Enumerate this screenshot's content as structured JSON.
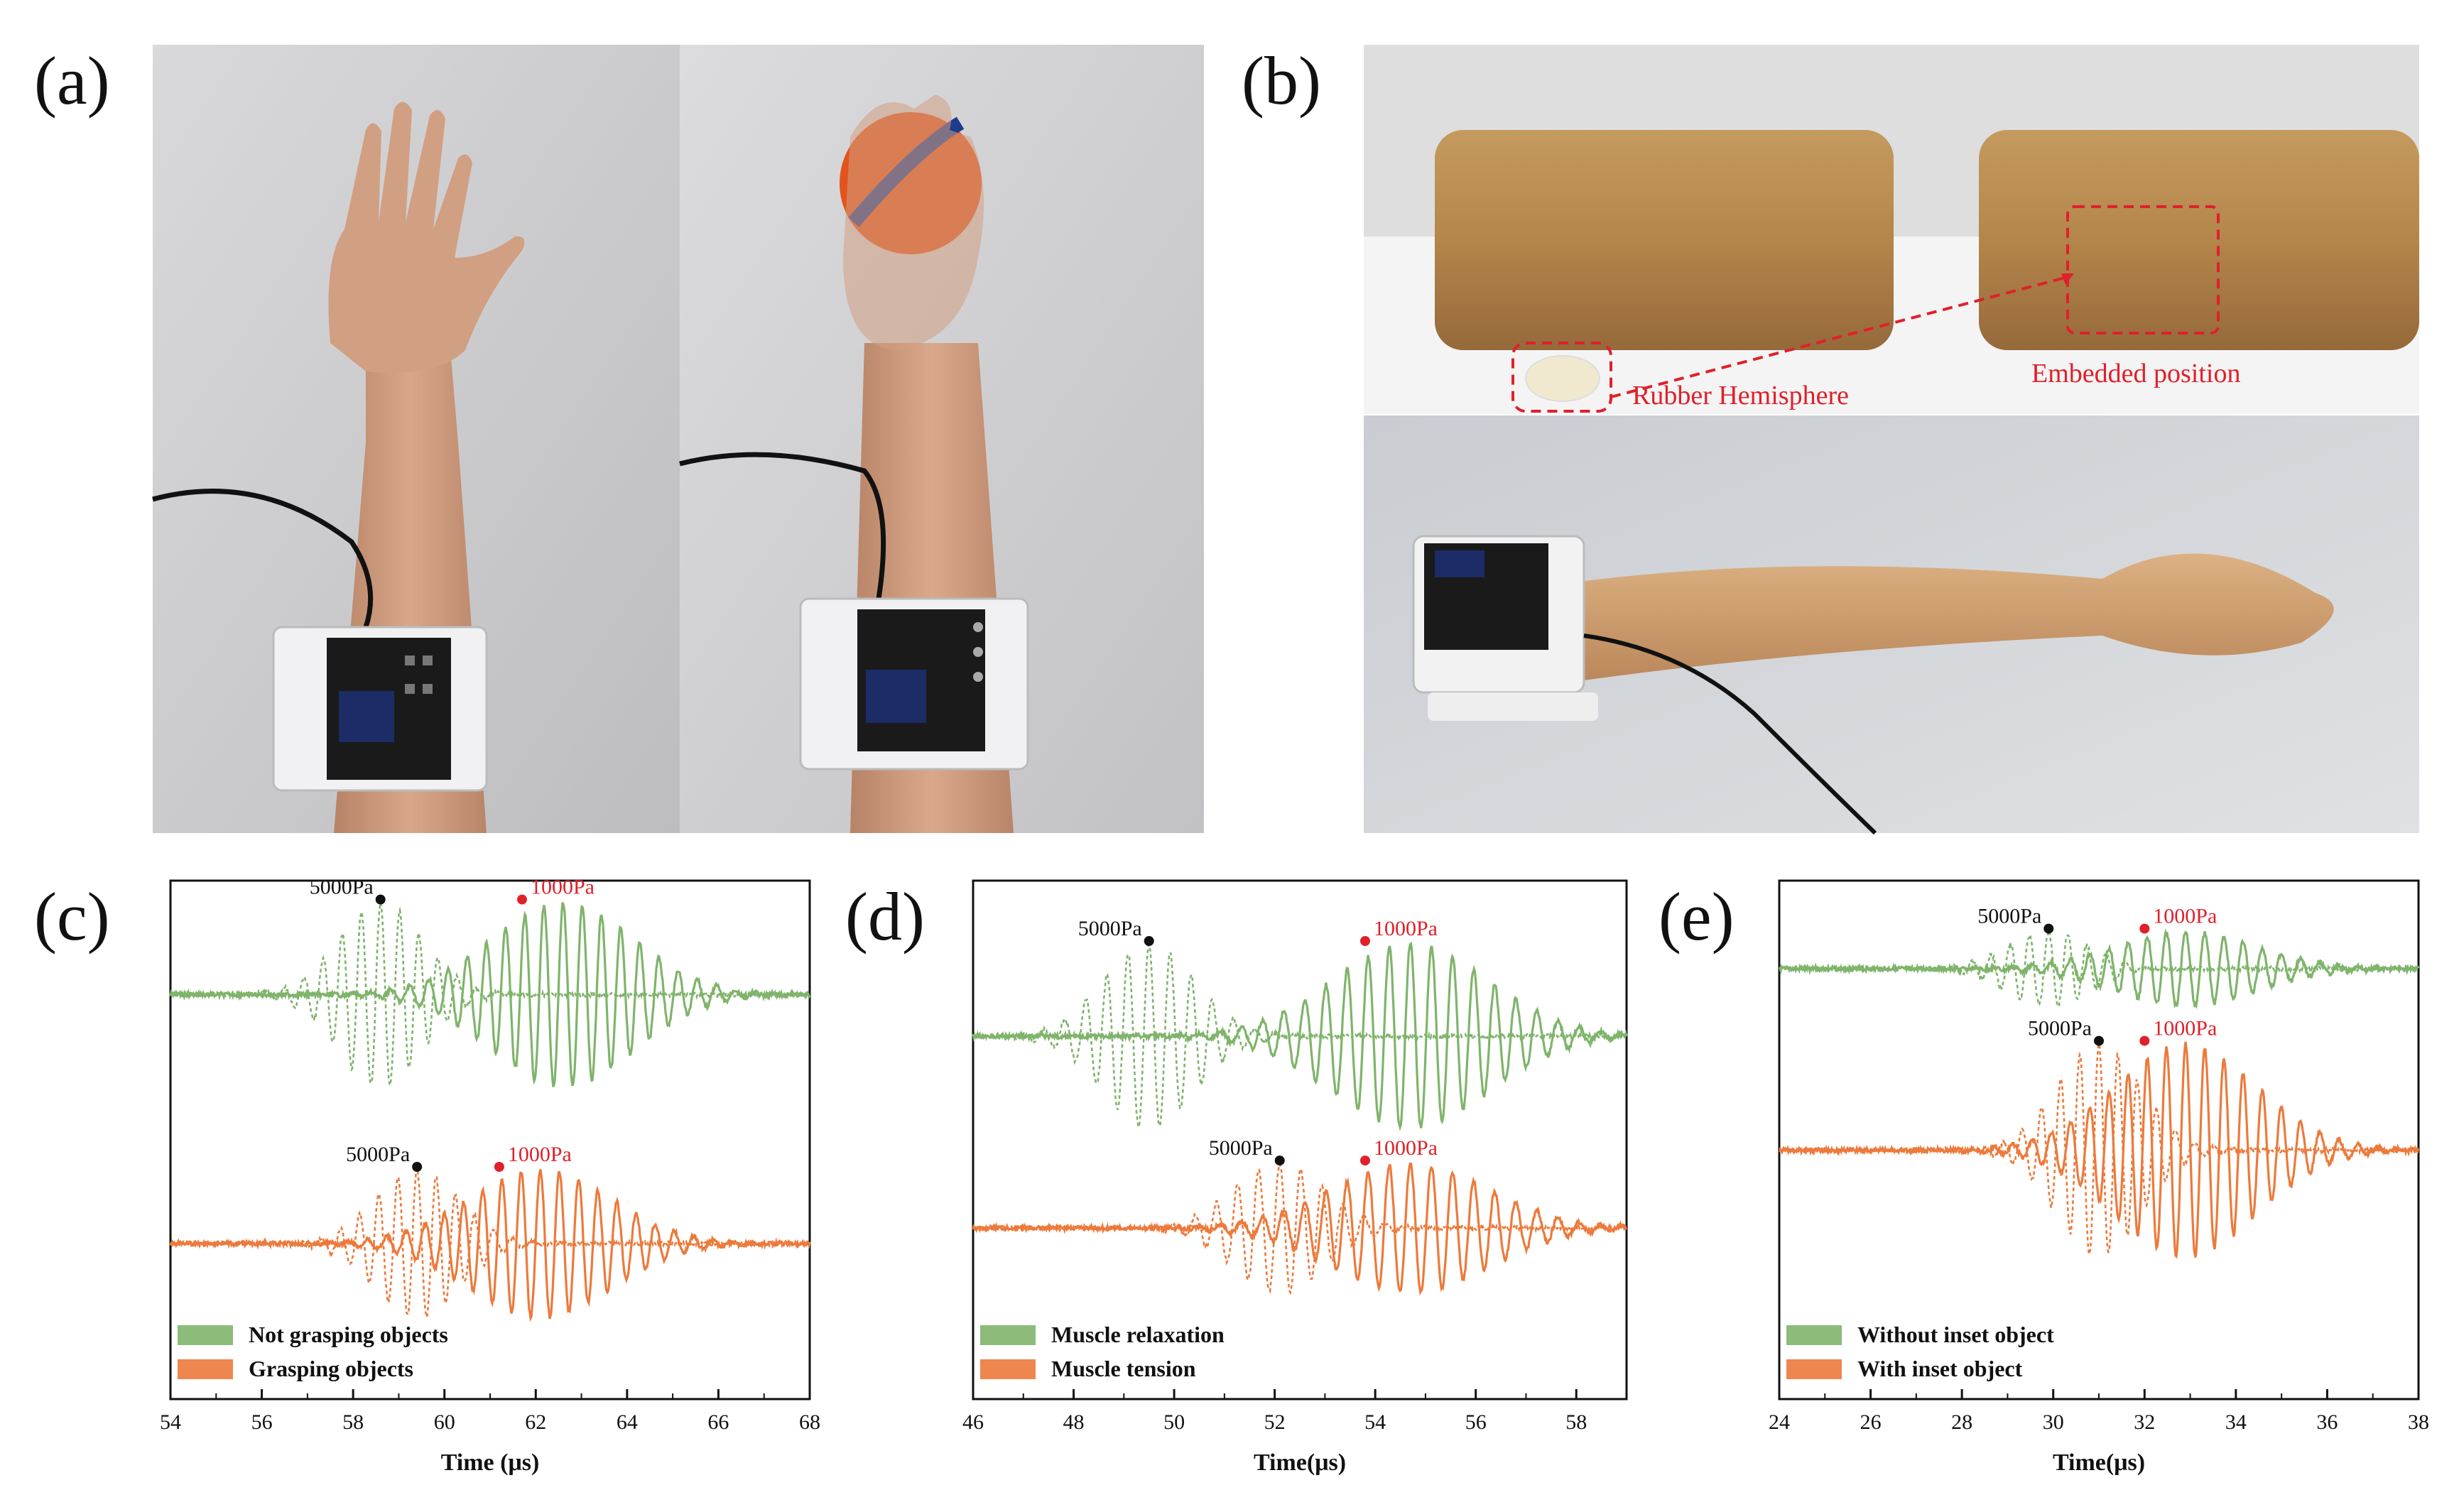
{
  "panels": {
    "a": {
      "label": "(a)"
    },
    "b": {
      "label": "(b)",
      "rubber_label": "Rubber Hemisphere",
      "embedded_label": "Embedded position"
    },
    "c": {
      "label": "(c)"
    },
    "d": {
      "label": "(d)"
    },
    "e": {
      "label": "(e)"
    }
  },
  "colors": {
    "green": "#7fb46b",
    "orange": "#ec7a3c",
    "black_dot": "#111111",
    "red_dot": "#e0202a",
    "red_text": "#e0202a"
  },
  "chart_data": [
    {
      "type": "line",
      "id": "c",
      "xlabel": "Time (μs)",
      "xlim": [
        54,
        68
      ],
      "xticks": [
        "54",
        "56",
        "58",
        "60",
        "62",
        "64",
        "66",
        "68"
      ],
      "legend": [
        "Not grasping objects",
        "Grasping objects"
      ],
      "legend_position": "bottom-left",
      "annotations": [
        {
          "text": "5000Pa",
          "x": 58.6,
          "row": "upper",
          "color": "black"
        },
        {
          "text": "1000Pa",
          "x": 61.7,
          "row": "upper",
          "color": "red"
        },
        {
          "text": "5000Pa",
          "x": 59.4,
          "row": "lower",
          "color": "black"
        },
        {
          "text": "1000Pa",
          "x": 61.2,
          "row": "lower",
          "color": "red"
        }
      ],
      "series": [
        {
          "name": "Not grasping objects",
          "color": "green",
          "row": "upper",
          "center": 60.2,
          "dashed_center": 59.4,
          "dashed_peak": 58.6,
          "solid_peak": 61.7,
          "amp": 1.0
        },
        {
          "name": "Grasping objects",
          "color": "orange",
          "row": "lower",
          "center": 61.0,
          "dashed_center": 59.0,
          "dashed_peak": 59.4,
          "solid_peak": 61.2,
          "amp": 0.8
        }
      ]
    },
    {
      "type": "line",
      "id": "d",
      "xlabel": "Time(μs)",
      "xlim": [
        46,
        59
      ],
      "xticks": [
        "46",
        "48",
        "50",
        "52",
        "54",
        "56",
        "58"
      ],
      "legend": [
        "Muscle relaxation",
        "Muscle tension"
      ],
      "legend_position": "bottom-left",
      "annotations": [
        {
          "text": "5000Pa",
          "x": 49.5,
          "row": "upper",
          "color": "black"
        },
        {
          "text": "1000Pa",
          "x": 53.8,
          "row": "upper",
          "color": "red"
        },
        {
          "text": "5000Pa",
          "x": 52.1,
          "row": "lower",
          "color": "black"
        },
        {
          "text": "1000Pa",
          "x": 53.8,
          "row": "lower",
          "color": "red"
        }
      ],
      "series": [
        {
          "name": "Muscle relaxation",
          "color": "green",
          "row": "upper",
          "dashed_peak": 49.5,
          "solid_peak": 53.8,
          "amp": 1.0
        },
        {
          "name": "Muscle tension",
          "color": "orange",
          "row": "lower",
          "dashed_peak": 52.1,
          "solid_peak": 53.8,
          "amp": 0.7
        }
      ]
    },
    {
      "type": "line",
      "id": "e",
      "xlabel": "Time(μs)",
      "xlim": [
        24,
        38
      ],
      "xticks": [
        "24",
        "26",
        "28",
        "30",
        "32",
        "34",
        "36",
        "38"
      ],
      "legend": [
        "Without inset object",
        "With inset object"
      ],
      "legend_position": "bottom-left",
      "annotations": [
        {
          "text": "5000Pa",
          "x": 29.9,
          "row": "upper",
          "color": "black"
        },
        {
          "text": "1000Pa",
          "x": 32.0,
          "row": "upper",
          "color": "red"
        },
        {
          "text": "5000Pa",
          "x": 31.0,
          "row": "lower",
          "color": "black"
        },
        {
          "text": "1000Pa",
          "x": 32.0,
          "row": "lower",
          "color": "red"
        }
      ],
      "series": [
        {
          "name": "Without inset object",
          "color": "green",
          "row": "upper",
          "dashed_peak": 29.9,
          "solid_peak": 32.0,
          "amp": 0.35
        },
        {
          "name": "With inset object",
          "color": "orange",
          "row": "lower",
          "dashed_peak": 31.0,
          "solid_peak": 32.0,
          "amp": 1.0
        }
      ]
    }
  ]
}
